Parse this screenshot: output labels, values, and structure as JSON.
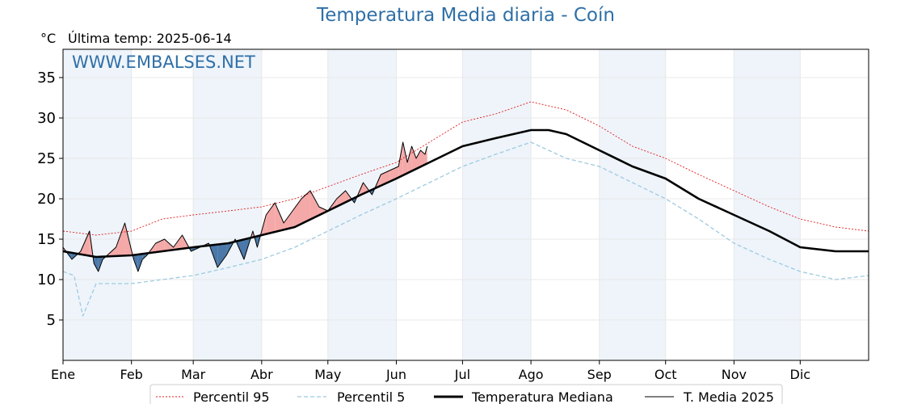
{
  "title": "Temperatura Media diaria - Coín",
  "unit": "°C",
  "last_temp": "Última temp: 2025-06-14",
  "watermark": "WWW.EMBALSES.NET",
  "colors": {
    "title": "#2f6fa7",
    "p95": "#e31a1c",
    "p5": "#9ecae1",
    "median": "#000000",
    "current": "#000000",
    "above_fill": "#f4a9a8",
    "below_fill": "#4a78a8",
    "shade": "#eef4fa"
  },
  "chart_data": {
    "type": "line",
    "title": "Temperatura Media diaria - Coín",
    "ylabel": "°C",
    "ylim": [
      0,
      38.5
    ],
    "yticks": [
      5,
      10,
      15,
      20,
      25,
      30,
      35
    ],
    "xlim_days": [
      0,
      365
    ],
    "months": [
      "Ene",
      "Feb",
      "Mar",
      "Abr",
      "May",
      "Jun",
      "Jul",
      "Ago",
      "Sep",
      "Oct",
      "Nov",
      "Dic"
    ],
    "month_starts": [
      0,
      31,
      59,
      90,
      120,
      151,
      181,
      212,
      243,
      273,
      304,
      334
    ],
    "shaded_months": [
      "Ene",
      "Mar",
      "May",
      "Jul",
      "Sep",
      "Nov"
    ],
    "legend": [
      "Percentil 95",
      "Percentil 5",
      "Temperatura Mediana",
      "T. Media 2025"
    ],
    "series": [
      {
        "name": "Percentil 95",
        "x": [
          0,
          15,
          31,
          45,
          59,
          75,
          90,
          105,
          120,
          135,
          151,
          166,
          181,
          196,
          212,
          220,
          228,
          243,
          258,
          273,
          288,
          304,
          320,
          334,
          350,
          365
        ],
        "values": [
          16,
          15.5,
          16,
          17.5,
          18,
          18.5,
          19,
          20,
          21.5,
          23,
          24.5,
          27,
          29.5,
          30.5,
          32,
          31.5,
          31,
          29,
          26.5,
          25,
          23,
          21,
          19,
          17.5,
          16.5,
          16
        ]
      },
      {
        "name": "Percentil 5",
        "x": [
          0,
          5,
          9,
          15,
          31,
          45,
          59,
          75,
          90,
          105,
          120,
          135,
          151,
          166,
          181,
          196,
          212,
          220,
          228,
          243,
          258,
          273,
          288,
          304,
          320,
          334,
          350,
          365
        ],
        "values": [
          11,
          10.5,
          5.5,
          9.5,
          9.5,
          10,
          10.5,
          11.5,
          12.5,
          14,
          16,
          18,
          20,
          22,
          24,
          25.5,
          27,
          26,
          25,
          24,
          22,
          20,
          17.5,
          14.5,
          12.5,
          11,
          10,
          10.5
        ]
      },
      {
        "name": "Temperatura Mediana",
        "x": [
          0,
          15,
          31,
          45,
          59,
          75,
          90,
          105,
          120,
          135,
          151,
          166,
          181,
          196,
          212,
          220,
          228,
          243,
          258,
          273,
          288,
          304,
          320,
          334,
          350,
          365
        ],
        "values": [
          13.5,
          12.8,
          13,
          13.5,
          14,
          14.5,
          15.5,
          16.5,
          18.5,
          20.5,
          22.5,
          24.5,
          26.5,
          27.5,
          28.5,
          28.5,
          28,
          26,
          24,
          22.5,
          20,
          18,
          16,
          14,
          13.5,
          13.5
        ]
      },
      {
        "name": "T. Media 2025",
        "x": [
          0,
          4,
          8,
          12,
          14,
          16,
          18,
          20,
          24,
          28,
          32,
          34,
          36,
          38,
          42,
          46,
          50,
          54,
          58,
          62,
          66,
          70,
          74,
          78,
          82,
          86,
          88,
          92,
          96,
          100,
          104,
          108,
          112,
          116,
          120,
          124,
          128,
          132,
          136,
          140,
          144,
          148,
          152,
          154,
          156,
          158,
          160,
          162,
          164,
          165
        ],
        "values": [
          14,
          12.5,
          13.5,
          16,
          12,
          11,
          12.5,
          13,
          14,
          17,
          12.5,
          11,
          12.5,
          13,
          14.5,
          15,
          14,
          15.5,
          13.5,
          14,
          14.5,
          11.5,
          13,
          15,
          12.5,
          16,
          14,
          18,
          19.5,
          17,
          18.5,
          20,
          21,
          19,
          18.5,
          20,
          21,
          19.5,
          22,
          20.5,
          23,
          23.5,
          24,
          27,
          24.5,
          26.5,
          25,
          26,
          25.5,
          26.5
        ]
      }
    ]
  }
}
